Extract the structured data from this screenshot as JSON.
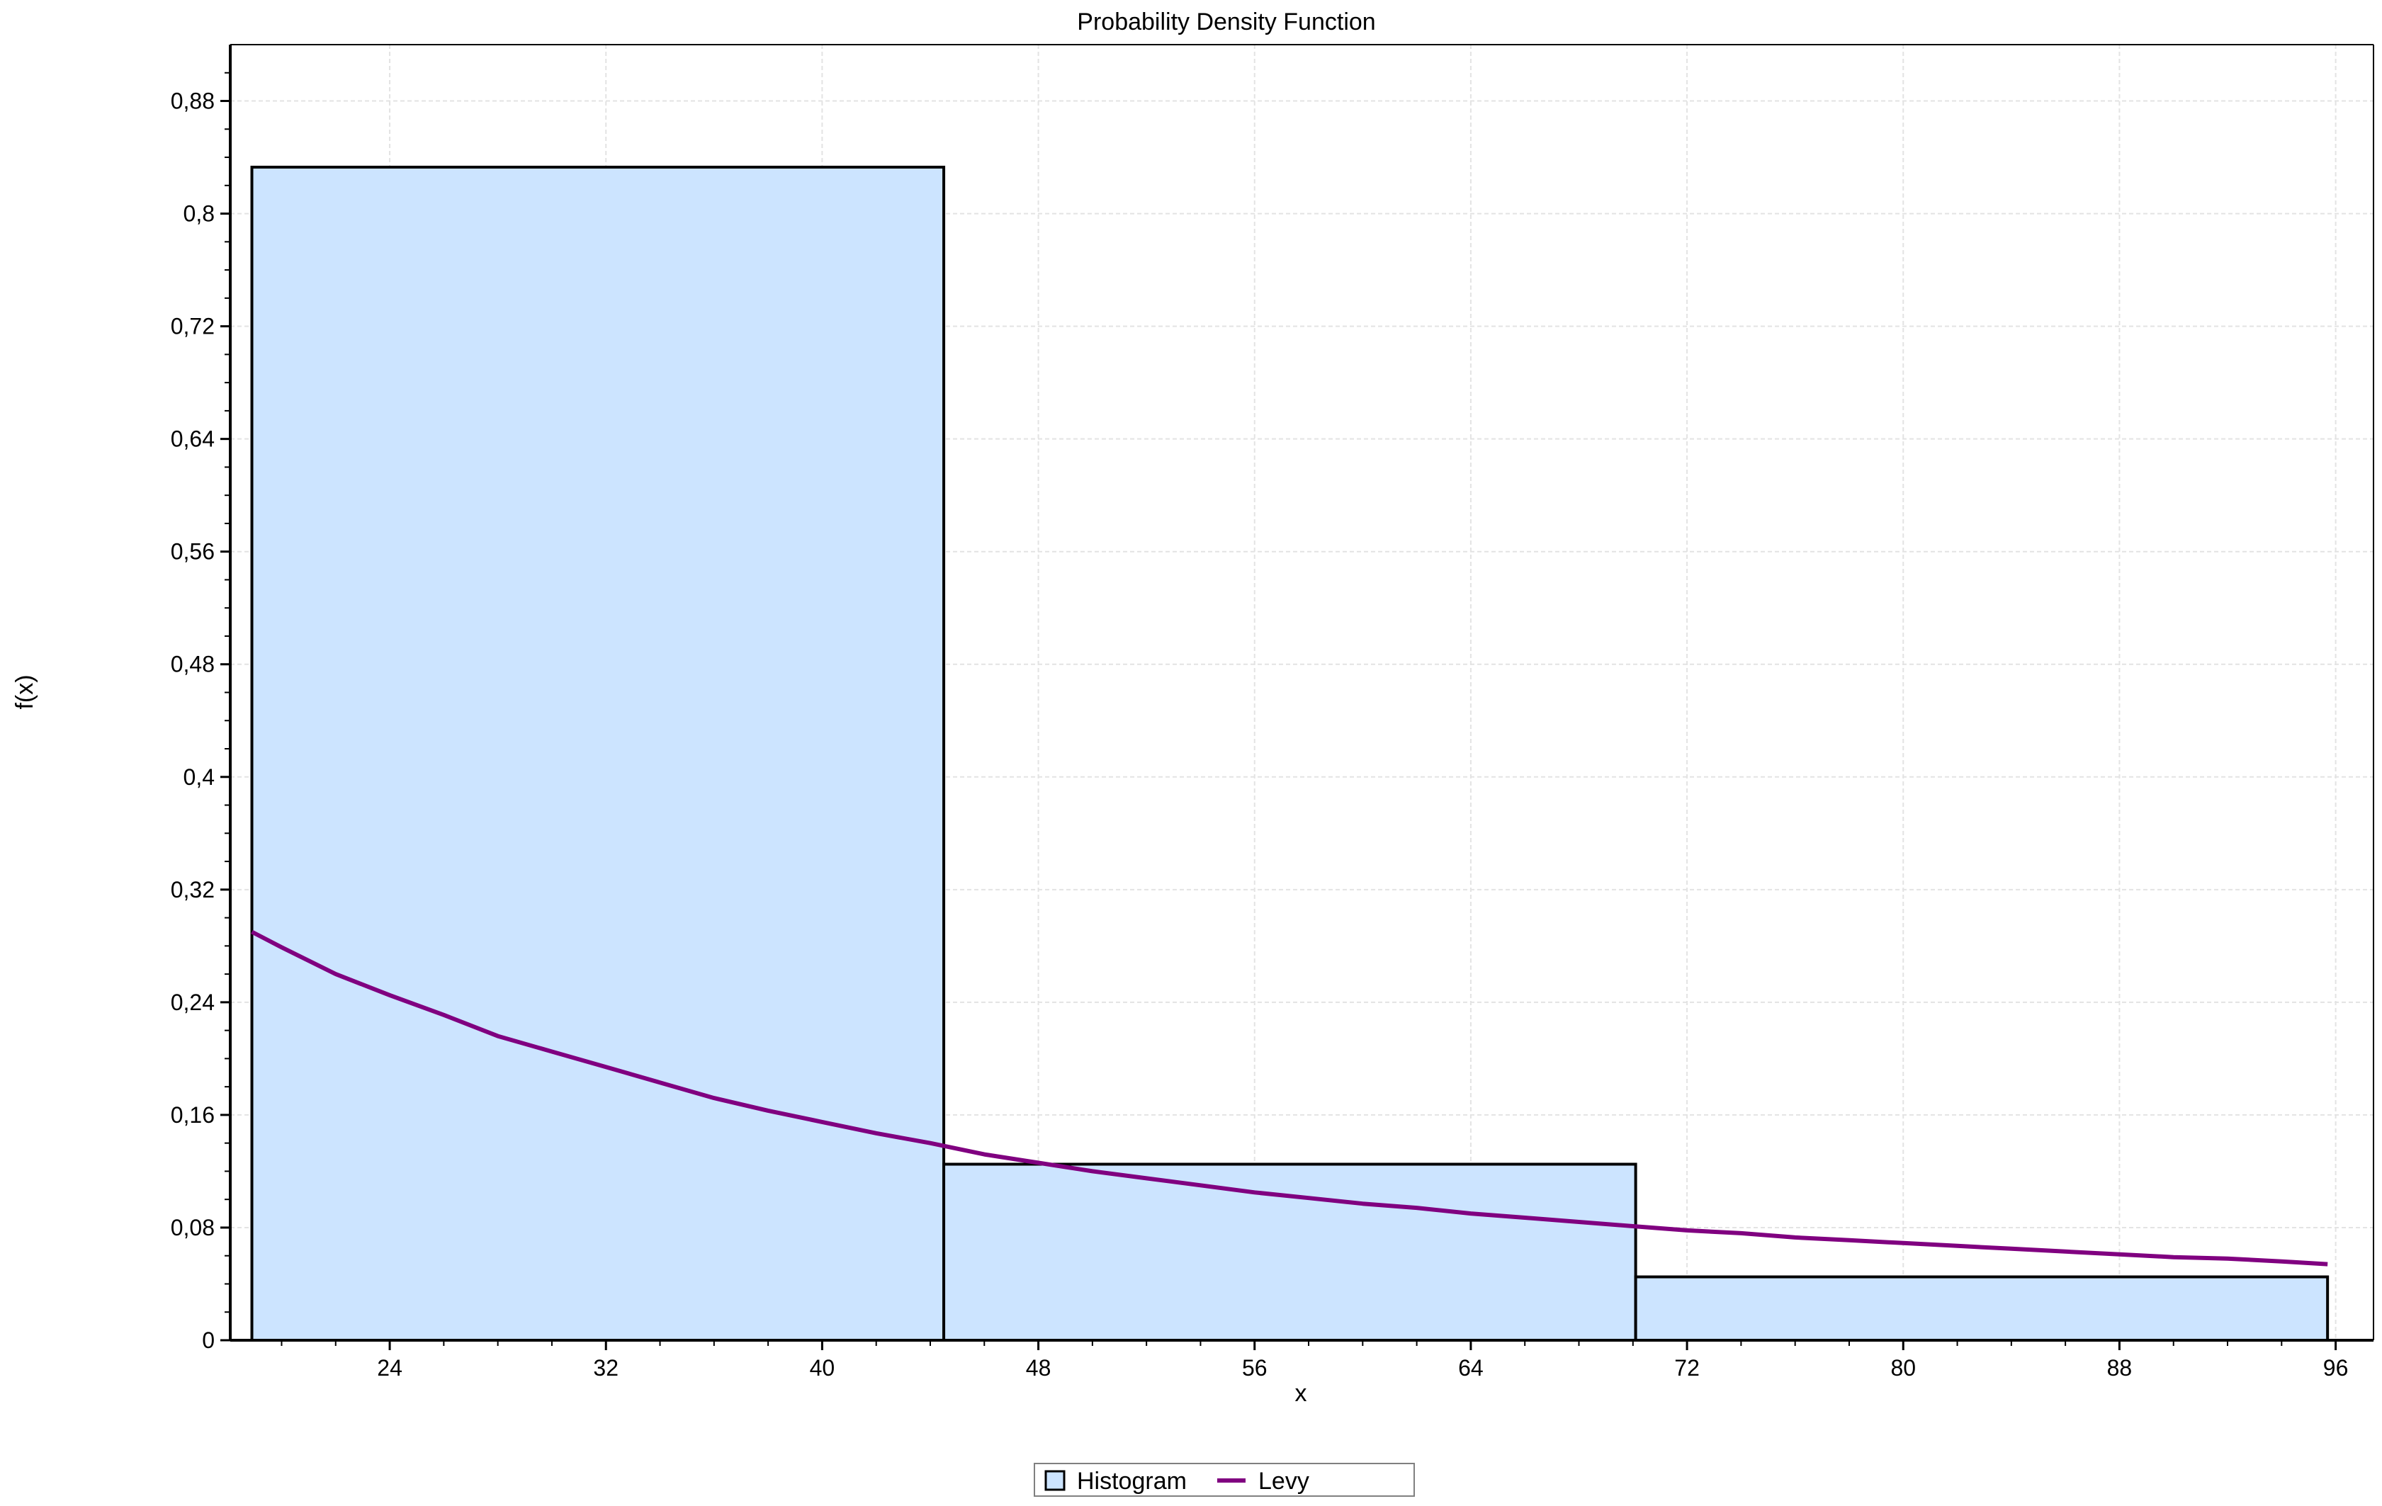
{
  "chart_data": {
    "type": "bar",
    "title": "Probability Density Function",
    "xlabel": "x",
    "ylabel": "f(x)",
    "xlim": [
      18.1,
      97.4
    ],
    "ylim": [
      0,
      0.92
    ],
    "xticks": [
      "24",
      "32",
      "40",
      "48",
      "56",
      "64",
      "72",
      "80",
      "88",
      "96"
    ],
    "xtick_values": [
      24,
      32,
      40,
      48,
      56,
      64,
      72,
      80,
      88,
      96
    ],
    "yticks": [
      "0",
      "0,08",
      "0,16",
      "0,24",
      "0,32",
      "0,4",
      "0,48",
      "0,56",
      "0,64",
      "0,72",
      "0,8",
      "0,88"
    ],
    "ytick_values": [
      0,
      0.08,
      0.16,
      0.24,
      0.32,
      0.4,
      0.48,
      0.56,
      0.64,
      0.72,
      0.8,
      0.88
    ],
    "grid": true,
    "legend_placement": "bottom-center",
    "series": [
      {
        "name": "Histogram",
        "kind": "histogram",
        "color": "#cce4ff",
        "edge_color": "#000000",
        "bins": [
          {
            "x0": 18.9,
            "x1": 44.5,
            "value": 0.833
          },
          {
            "x0": 44.5,
            "x1": 70.1,
            "value": 0.125
          },
          {
            "x0": 70.1,
            "x1": 95.7,
            "value": 0.045
          }
        ]
      },
      {
        "name": "Levy",
        "kind": "line",
        "color": "#800080",
        "points": [
          [
            18.9,
            0.29
          ],
          [
            20,
            0.279
          ],
          [
            22,
            0.26
          ],
          [
            24,
            0.245
          ],
          [
            26,
            0.231
          ],
          [
            28,
            0.216
          ],
          [
            30,
            0.205
          ],
          [
            32,
            0.194
          ],
          [
            34,
            0.183
          ],
          [
            36,
            0.172
          ],
          [
            38,
            0.163
          ],
          [
            40,
            0.155
          ],
          [
            42,
            0.147
          ],
          [
            44,
            0.14
          ],
          [
            46,
            0.132
          ],
          [
            48,
            0.126
          ],
          [
            50,
            0.12
          ],
          [
            52,
            0.115
          ],
          [
            54,
            0.11
          ],
          [
            56,
            0.105
          ],
          [
            58,
            0.101
          ],
          [
            60,
            0.097
          ],
          [
            62,
            0.094
          ],
          [
            64,
            0.09
          ],
          [
            66,
            0.087
          ],
          [
            68,
            0.084
          ],
          [
            70,
            0.081
          ],
          [
            72,
            0.078
          ],
          [
            74,
            0.076
          ],
          [
            76,
            0.073
          ],
          [
            78,
            0.071
          ],
          [
            80,
            0.069
          ],
          [
            82,
            0.067
          ],
          [
            84,
            0.065
          ],
          [
            86,
            0.063
          ],
          [
            88,
            0.061
          ],
          [
            90,
            0.059
          ],
          [
            92,
            0.058
          ],
          [
            94,
            0.056
          ],
          [
            95.7,
            0.054
          ]
        ]
      }
    ]
  }
}
